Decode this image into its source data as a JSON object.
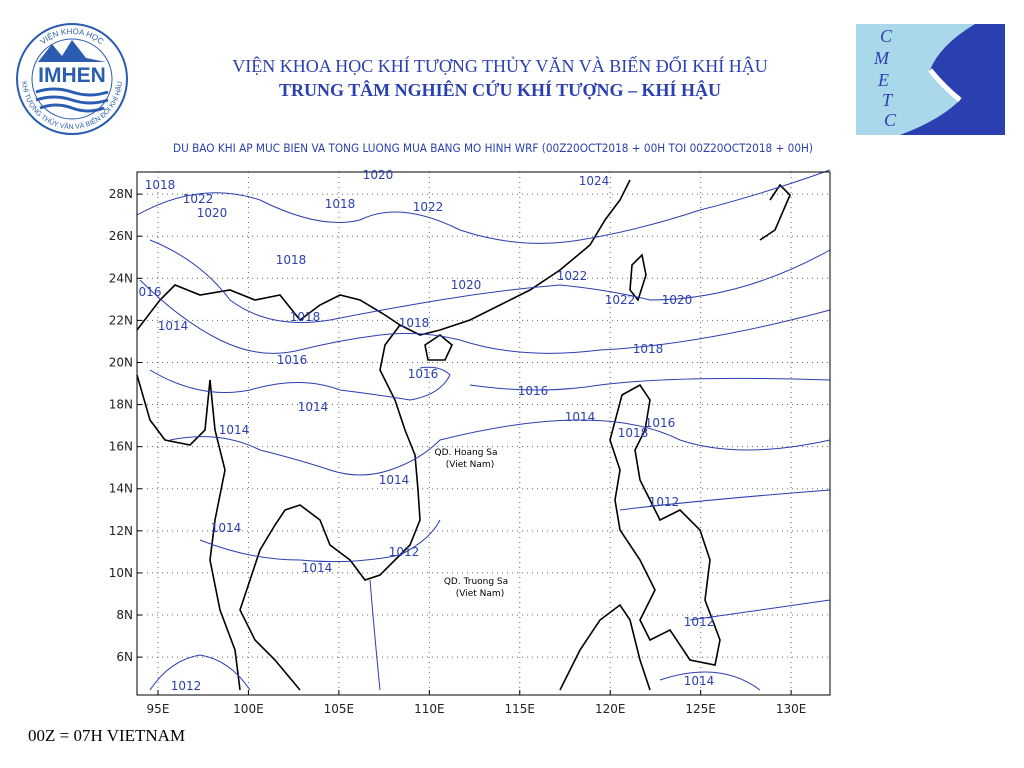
{
  "header": {
    "title": "VIỆN KHOA HỌC KHÍ TƯỢNG THỦY VĂN VÀ BIẾN ĐỔI KHÍ HẬU",
    "subtitle": "TRUNG TÂM NGHIÊN CỨU KHÍ TƯỢNG – KHÍ HẬU",
    "logo_left": {
      "name": "IMHEN",
      "ring_top": "VIỆN KHOA HỌC",
      "ring_bottom": "KHÍ TƯỢNG THỦY VĂN VÀ BIẾN ĐỔI KHÍ HẬU"
    },
    "logo_right": {
      "letters": [
        "C",
        "M",
        "E",
        "T",
        "C"
      ]
    }
  },
  "map": {
    "title": "DU BAO KHI AP MUC BIEN VA TONG LUONG MUA BANG MO HINH WRF (00Z20OCT2018 + 00H TOI 00Z20OCT2018 + 00H)",
    "xlim": [
      93.84,
      132.15
    ],
    "ylim": [
      4.2,
      29.05
    ],
    "xticks": [
      {
        "value": 95,
        "label": "95E"
      },
      {
        "value": 100,
        "label": "100E"
      },
      {
        "value": 105,
        "label": "105E"
      },
      {
        "value": 110,
        "label": "110E"
      },
      {
        "value": 115,
        "label": "115E"
      },
      {
        "value": 120,
        "label": "120E"
      },
      {
        "value": 125,
        "label": "125E"
      },
      {
        "value": 130,
        "label": "130E"
      }
    ],
    "yticks": [
      {
        "value": 6,
        "label": "6N"
      },
      {
        "value": 8,
        "label": "8N"
      },
      {
        "value": 10,
        "label": "10N"
      },
      {
        "value": 12,
        "label": "12N"
      },
      {
        "value": 14,
        "label": "14N"
      },
      {
        "value": 16,
        "label": "16N"
      },
      {
        "value": 18,
        "label": "18N"
      },
      {
        "value": 20,
        "label": "20N"
      },
      {
        "value": 22,
        "label": "22N"
      },
      {
        "value": 24,
        "label": "24N"
      },
      {
        "value": 26,
        "label": "26N"
      },
      {
        "value": 28,
        "label": "28N"
      }
    ],
    "grid": true,
    "contour_labels": [
      "1018",
      "1022",
      "1020",
      "1020",
      "1018",
      "1022",
      "1024",
      "1018",
      "016",
      "1020",
      "1022",
      "1022",
      "1020",
      "1014",
      "1018",
      "1018",
      "1016",
      "1018",
      "1016",
      "1016",
      "1014",
      "1014",
      "1014",
      "1018",
      "1016",
      "1014",
      "1012",
      "1014",
      "1012",
      "1014",
      "1012",
      "1014",
      "1012"
    ],
    "places": [
      {
        "name": "QD. Hoang Sa",
        "note": "(Viet Nam)"
      },
      {
        "name": "QD. Truong Sa",
        "note": "(Viet Nam)"
      }
    ]
  },
  "footer": "00Z = 07H VIETNAM"
}
